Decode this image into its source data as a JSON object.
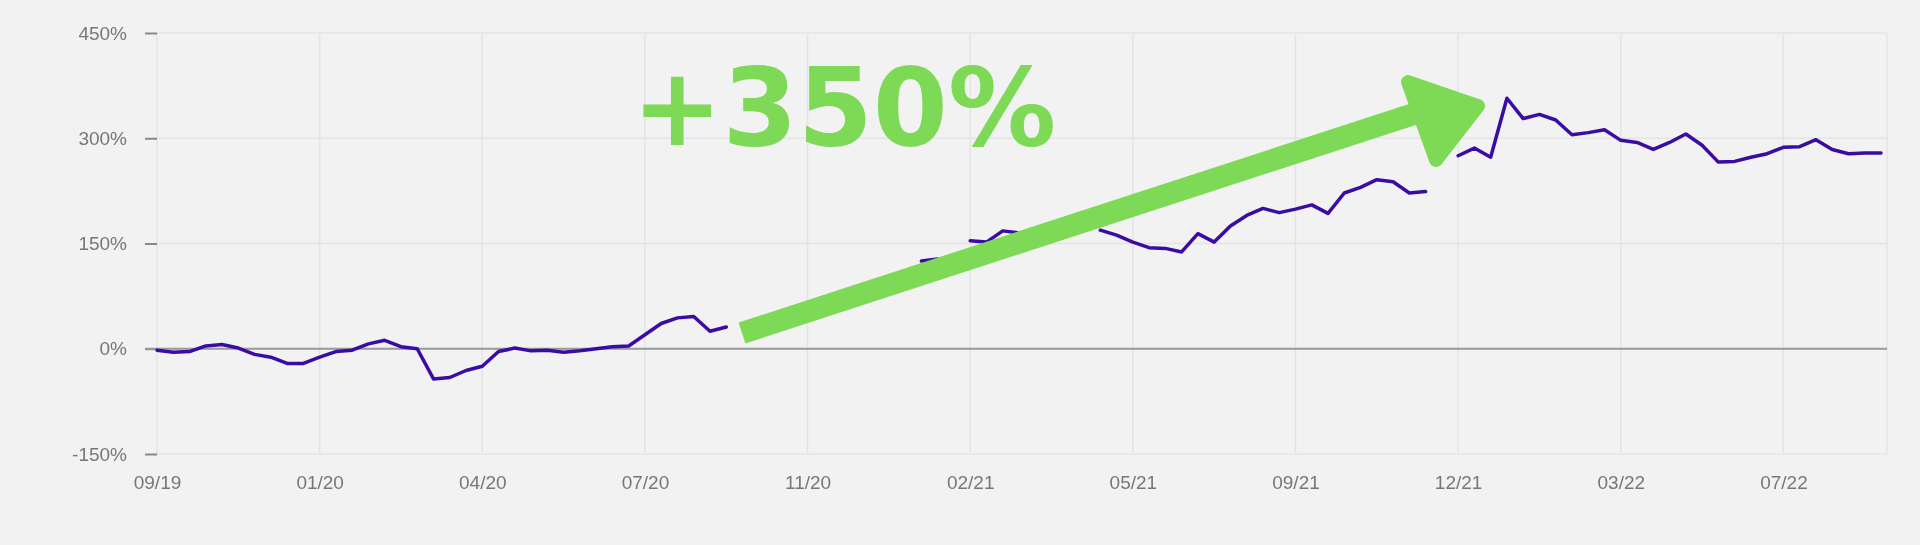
{
  "chart_data": {
    "type": "line",
    "annotations": [
      "+350%"
    ],
    "categories": [
      "09/19",
      null,
      null,
      null,
      null,
      null,
      null,
      null,
      null,
      null,
      "01/20",
      null,
      null,
      null,
      null,
      null,
      null,
      null,
      null,
      null,
      "04/20",
      null,
      null,
      null,
      null,
      null,
      null,
      null,
      null,
      null,
      "07/20",
      null,
      null,
      null,
      null,
      null,
      null,
      null,
      null,
      null,
      "11/20",
      null,
      null,
      null,
      null,
      null,
      null,
      null,
      null,
      null,
      "02/21",
      null,
      null,
      null,
      null,
      null,
      null,
      null,
      null,
      null,
      "05/21",
      null,
      null,
      null,
      null,
      null,
      null,
      null,
      null,
      null,
      "09/21",
      null,
      null,
      null,
      null,
      null,
      null,
      null,
      null,
      null,
      "12/21",
      null,
      null,
      null,
      null,
      null,
      null,
      null,
      null,
      null,
      "03/22",
      null,
      null,
      null,
      null,
      null,
      null,
      null,
      null,
      null,
      "07/22",
      null,
      null,
      null,
      null,
      null,
      null
    ],
    "series": [
      {
        "color": "#3a0ca3",
        "values": [
          -2,
          -5,
          -4,
          4,
          6,
          1,
          -8,
          -12,
          -21,
          -21,
          -12,
          -4,
          -2,
          7,
          12,
          3,
          0,
          -43,
          -41,
          -31,
          -25,
          -4,
          1,
          -3,
          -2,
          -5,
          -3,
          0,
          3,
          4,
          20,
          36,
          44,
          46,
          25,
          31,
          null,
          null,
          null,
          null,
          null,
          null,
          null,
          null,
          null,
          null,
          null,
          125,
          128,
          null,
          154,
          152,
          168,
          165,
          null,
          null,
          null,
          null,
          169,
          162,
          152,
          144,
          143,
          138,
          164,
          152,
          175,
          190,
          200,
          194,
          199,
          205,
          193,
          222,
          230,
          241,
          238,
          222,
          224,
          null,
          275,
          286,
          273,
          357,
          328,
          334,
          326,
          305,
          308,
          312,
          297,
          294,
          284,
          294,
          306,
          290,
          266,
          267,
          273,
          278,
          287,
          288,
          298,
          284,
          278,
          279,
          279
        ]
      }
    ],
    "ylim": [
      -150,
      450
    ],
    "yticks": [
      {
        "value": -150,
        "label": "-150%"
      },
      {
        "value": 0,
        "label": "0%"
      },
      {
        "value": 150,
        "label": "150%"
      },
      {
        "value": 300,
        "label": "300%"
      },
      {
        "value": 450,
        "label": "450%"
      }
    ],
    "ref_lines": [
      {
        "axis": "y",
        "value": 0,
        "color": "#999999"
      }
    ],
    "grid": true,
    "line_style": "solid",
    "marker": "none"
  }
}
